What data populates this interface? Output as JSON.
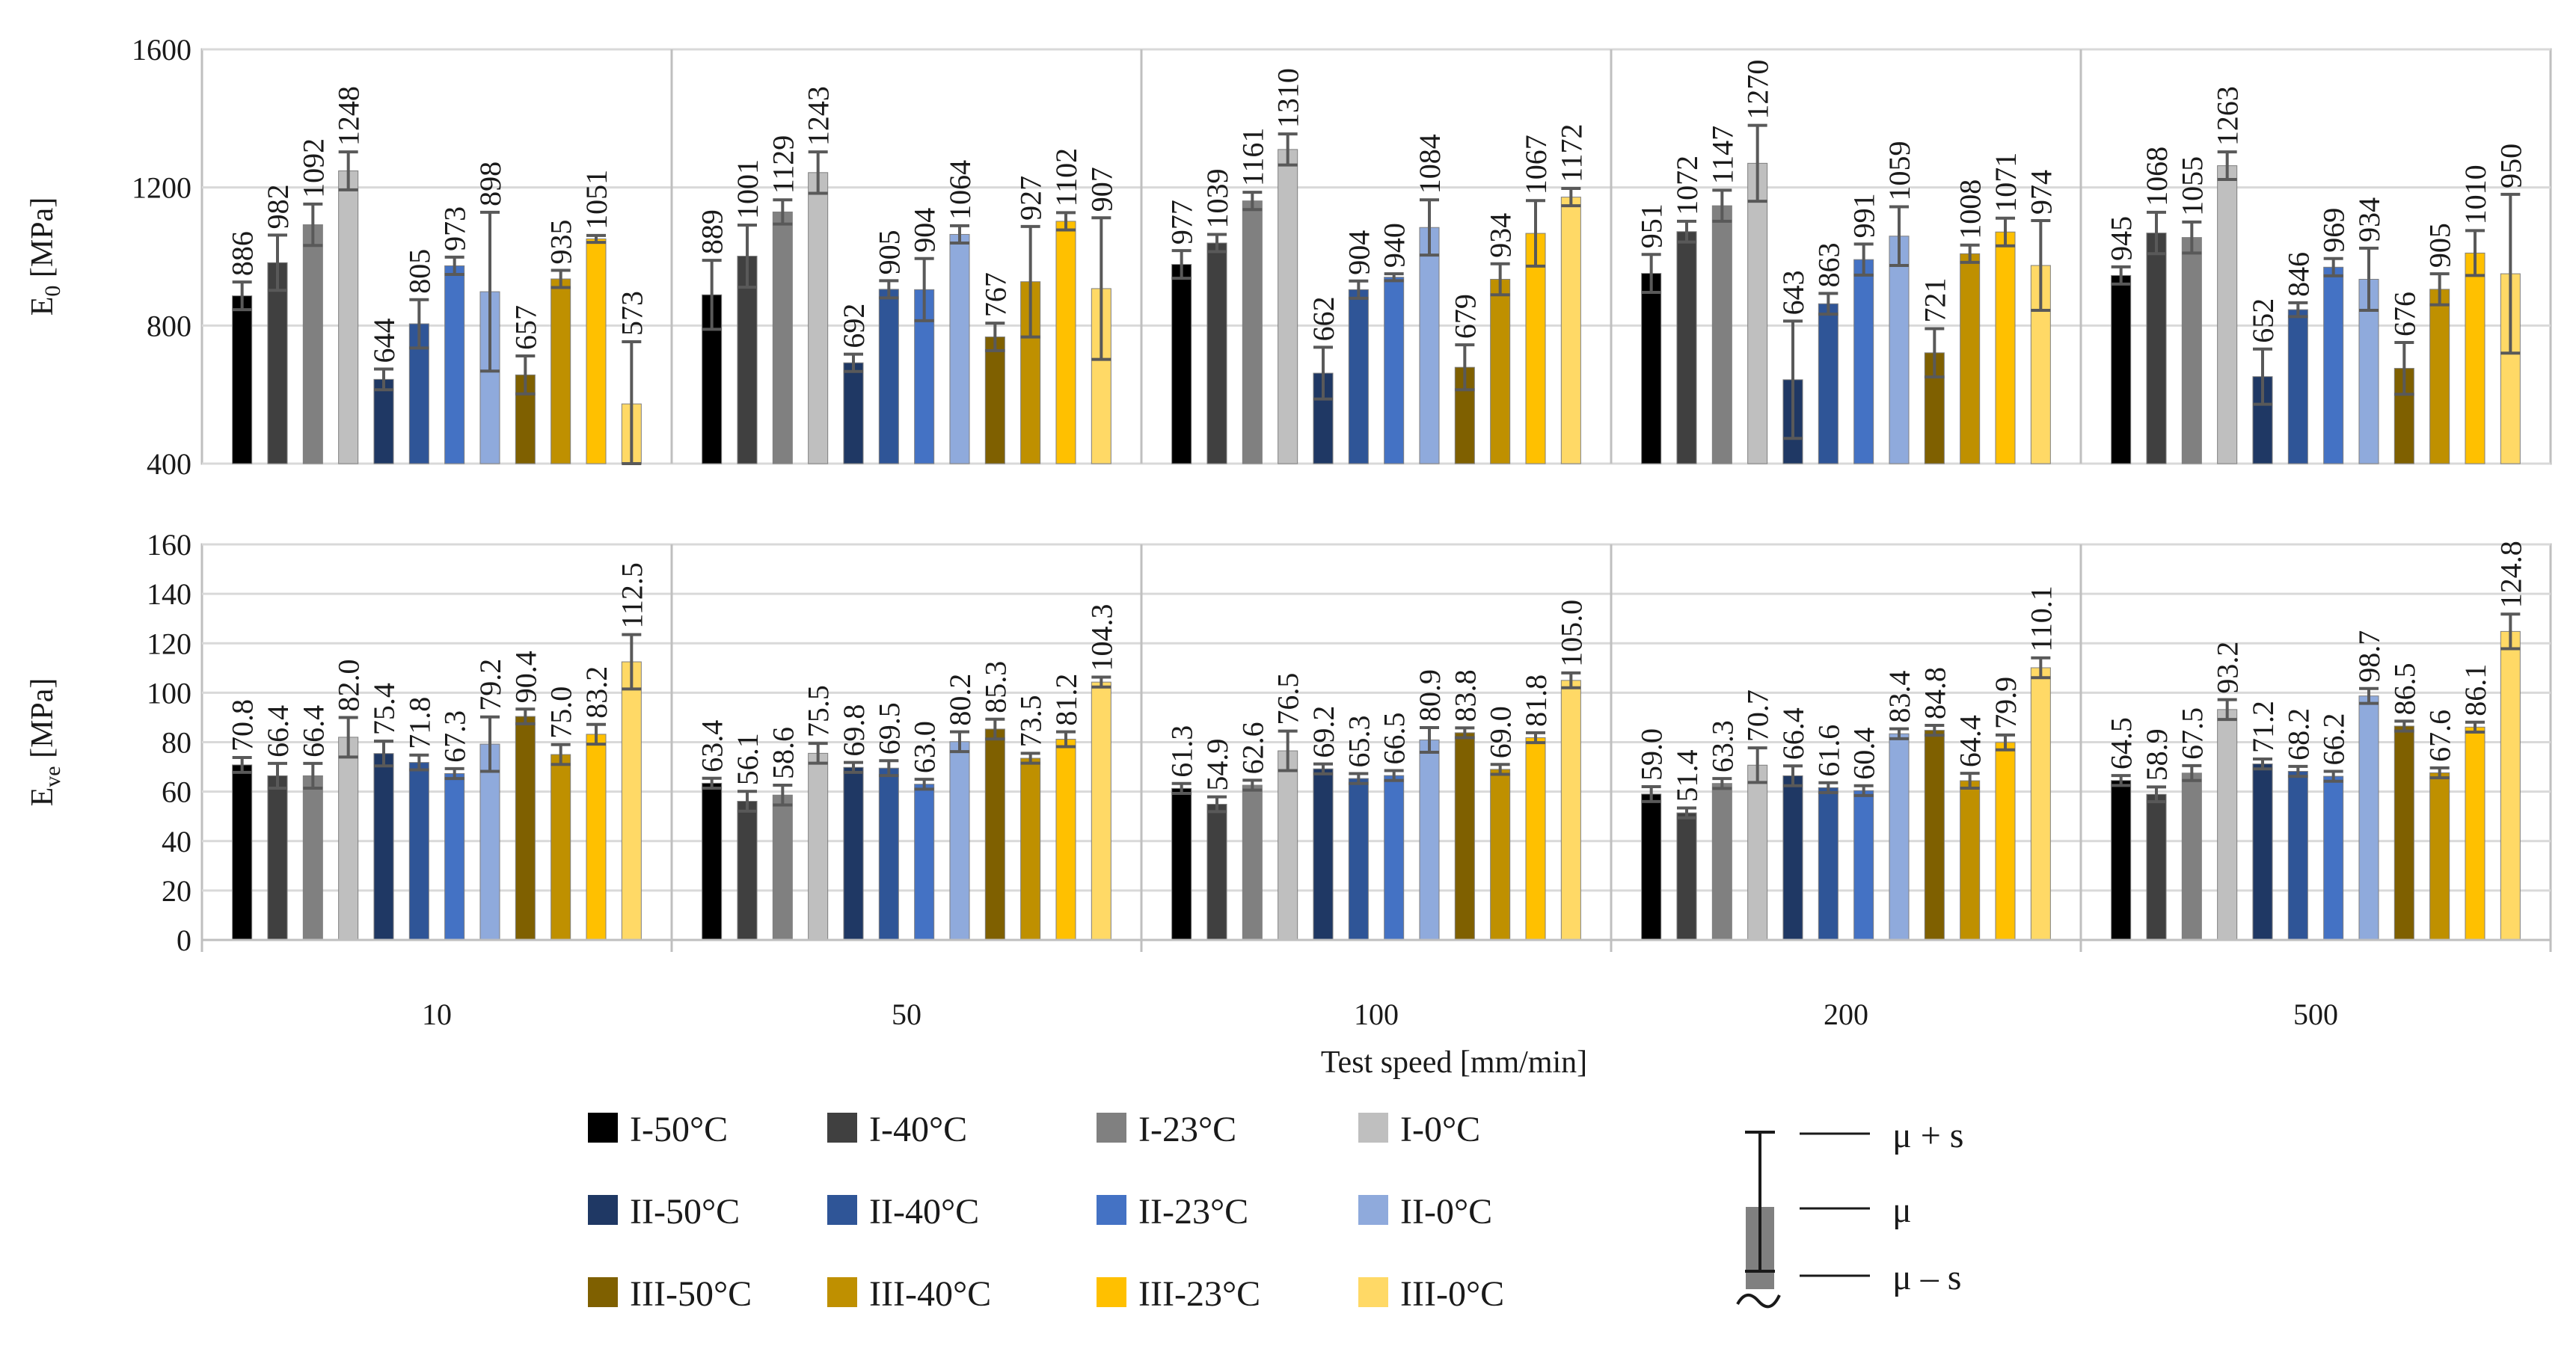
{
  "chart_data": {
    "type": "bar",
    "xlabel": "Test speed [mm/min]",
    "categories": [
      "10",
      "50",
      "100",
      "200",
      "500"
    ],
    "series": [
      {
        "name": "I-50°C",
        "color": "#000000"
      },
      {
        "name": "I-40°C",
        "color": "#404040"
      },
      {
        "name": "I-23°C",
        "color": "#808080"
      },
      {
        "name": "I-0°C",
        "color": "#bfbfbf"
      },
      {
        "name": "II-50°C",
        "color": "#1f3864"
      },
      {
        "name": "II-40°C",
        "color": "#2f5597"
      },
      {
        "name": "II-23°C",
        "color": "#4472c4"
      },
      {
        "name": "II-0°C",
        "color": "#8faadc"
      },
      {
        "name": "III-50°C",
        "color": "#7f6000"
      },
      {
        "name": "III-40°C",
        "color": "#bf9000"
      },
      {
        "name": "III-23°C",
        "color": "#ffc000"
      },
      {
        "name": "III-0°C",
        "color": "#ffd966"
      }
    ],
    "panels": [
      {
        "ylabel_main": "E",
        "ylabel_sub": "0",
        "ylabel_rest": " [MPa]",
        "ylim": [
          400,
          1600
        ],
        "yticks": [
          "400",
          "800",
          "1200",
          "1600"
        ],
        "ytick_values": [
          400,
          800,
          1200,
          1600
        ],
        "values": [
          [
            886,
            982,
            1092,
            1248,
            644,
            805,
            973,
            898,
            657,
            935,
            1051,
            573
          ],
          [
            889,
            1001,
            1129,
            1243,
            692,
            905,
            904,
            1064,
            767,
            927,
            1102,
            907
          ],
          [
            977,
            1039,
            1161,
            1310,
            662,
            904,
            940,
            1084,
            679,
            934,
            1067,
            1172
          ],
          [
            951,
            1072,
            1147,
            1270,
            643,
            863,
            991,
            1059,
            721,
            1008,
            1071,
            974
          ],
          [
            945,
            1068,
            1055,
            1263,
            652,
            846,
            969,
            934,
            676,
            905,
            1010,
            950
          ]
        ],
        "labels": [
          [
            "886",
            "982",
            "1092",
            "1248",
            "644",
            "805",
            "973",
            "898",
            "657",
            "935",
            "1051",
            "573"
          ],
          [
            "889",
            "1001",
            "1129",
            "1243",
            "692",
            "905",
            "904",
            "1064",
            "767",
            "927",
            "1102",
            "907"
          ],
          [
            "977",
            "1039",
            "1161",
            "1310",
            "662",
            "904",
            "940",
            "1084",
            "679",
            "934",
            "1067",
            "1172"
          ],
          [
            "951",
            "1072",
            "1147",
            "1270",
            "643",
            "863",
            "991",
            "1059",
            "721",
            "1008",
            "1071",
            "974"
          ],
          [
            "945",
            "1068",
            "1055",
            "1263",
            "652",
            "846",
            "969",
            "934",
            "676",
            "905",
            "1010",
            "950"
          ]
        ],
        "errors": [
          [
            40,
            80,
            60,
            55,
            30,
            70,
            25,
            230,
            55,
            25,
            10,
            180
          ],
          [
            100,
            90,
            35,
            60,
            25,
            25,
            90,
            25,
            40,
            160,
            25,
            205
          ],
          [
            40,
            25,
            25,
            45,
            75,
            25,
            10,
            80,
            65,
            45,
            95,
            25
          ],
          [
            55,
            30,
            45,
            110,
            170,
            30,
            45,
            85,
            70,
            25,
            40,
            130
          ],
          [
            25,
            60,
            45,
            40,
            80,
            20,
            25,
            90,
            75,
            45,
            65,
            230
          ]
        ]
      },
      {
        "ylabel_main": "E",
        "ylabel_sub": "ve",
        "ylabel_rest": " [MPa]",
        "ylim": [
          0,
          160
        ],
        "yticks": [
          "0",
          "20",
          "40",
          "60",
          "80",
          "100",
          "120",
          "140",
          "160"
        ],
        "ytick_values": [
          0,
          20,
          40,
          60,
          80,
          100,
          120,
          140,
          160
        ],
        "values": [
          [
            70.8,
            66.4,
            66.4,
            82.0,
            75.4,
            71.8,
            67.3,
            79.2,
            90.4,
            75.0,
            83.2,
            112.5
          ],
          [
            63.4,
            56.1,
            58.6,
            75.5,
            69.8,
            69.5,
            63.0,
            80.2,
            85.3,
            73.5,
            81.2,
            104.3
          ],
          [
            61.3,
            54.9,
            62.6,
            76.5,
            69.2,
            65.3,
            66.5,
            80.9,
            83.8,
            69.0,
            81.8,
            105.0
          ],
          [
            59.0,
            51.4,
            63.3,
            70.7,
            66.4,
            61.6,
            60.4,
            83.4,
            84.8,
            64.4,
            79.9,
            110.1
          ],
          [
            64.5,
            58.9,
            67.5,
            93.2,
            71.2,
            68.2,
            66.2,
            98.7,
            86.5,
            67.6,
            86.1,
            124.8
          ]
        ],
        "labels": [
          [
            "70.8",
            "66.4",
            "66.4",
            "82.0",
            "75.4",
            "71.8",
            "67.3",
            "79.2",
            "90.4",
            "75.0",
            "83.2",
            "112.5"
          ],
          [
            "63.4",
            "56.1",
            "58.6",
            "75.5",
            "69.8",
            "69.5",
            "63.0",
            "80.2",
            "85.3",
            "73.5",
            "81.2",
            "104.3"
          ],
          [
            "61.3",
            "54.9",
            "62.6",
            "76.5",
            "69.2",
            "65.3",
            "66.5",
            "80.9",
            "83.8",
            "69.0",
            "81.8",
            "105.0"
          ],
          [
            "59.0",
            "51.4",
            "63.3",
            "70.7",
            "66.4",
            "61.6",
            "60.4",
            "83.4",
            "84.8",
            "64.4",
            "79.9",
            "110.1"
          ],
          [
            "64.5",
            "58.9",
            "67.5",
            "93.2",
            "71.2",
            "68.2",
            "66.2",
            "98.7",
            "86.5",
            "67.6",
            "86.1",
            "124.8"
          ]
        ],
        "errors": [
          [
            3,
            5,
            5,
            8,
            5,
            3,
            2,
            11,
            3,
            4,
            4,
            11
          ],
          [
            2,
            4,
            4,
            4,
            2,
            3,
            2,
            4,
            4,
            2,
            3,
            2
          ],
          [
            2,
            3,
            2,
            8,
            2,
            2,
            2,
            5,
            2,
            2,
            2,
            3
          ],
          [
            3,
            2,
            2,
            7,
            4,
            2,
            2,
            2,
            2,
            3,
            3,
            4
          ],
          [
            2,
            3,
            3,
            4,
            2,
            2,
            2,
            3,
            2,
            2,
            2,
            7
          ]
        ]
      }
    ],
    "legend_position": "bottom",
    "error_key": {
      "upper": "μ + s",
      "mean": "μ",
      "lower": "μ – s"
    }
  }
}
